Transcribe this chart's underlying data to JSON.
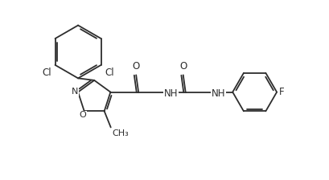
{
  "line_color": "#2d2d2d",
  "bg_color": "#ffffff",
  "line_width": 1.3,
  "font_size": 8.5,
  "figsize": [
    4.1,
    2.24
  ],
  "dpi": 100,
  "xlim": [
    0,
    10.5
  ],
  "ylim": [
    0,
    6.0
  ]
}
